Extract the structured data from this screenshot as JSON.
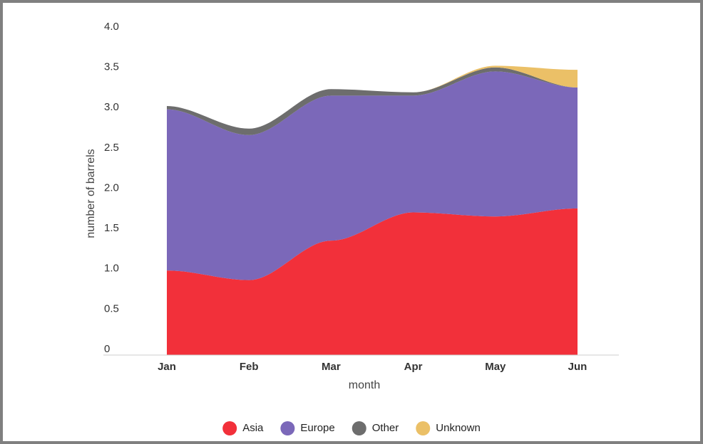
{
  "chart_data": {
    "type": "area",
    "stacked": true,
    "x_label": "month",
    "y_label": "number of barrels",
    "categories": [
      "Jan",
      "Feb",
      "Mar",
      "Apr",
      "May",
      "Jun"
    ],
    "series": [
      {
        "name": "Asia",
        "color": "#f2303a",
        "values": [
          1.05,
          0.93,
          1.42,
          1.77,
          1.72,
          1.82
        ]
      },
      {
        "name": "Europe",
        "color": "#7b68b9",
        "values": [
          2.0,
          1.8,
          1.8,
          1.45,
          1.8,
          1.5
        ]
      },
      {
        "name": "Other",
        "color": "#6d6d6d",
        "values": [
          0.04,
          0.08,
          0.08,
          0.04,
          0.05,
          0
        ]
      },
      {
        "name": "Unknown",
        "color": "#ebc067",
        "values": [
          0,
          0,
          0,
          0,
          0.02,
          0.22
        ]
      }
    ],
    "ylim": [
      0,
      4
    ],
    "yticks": [
      0,
      {
        "value": 0.5,
        "label": "0.5"
      },
      {
        "value": 1,
        "label": "1.0"
      },
      {
        "value": 1.5,
        "label": "1.5"
      },
      {
        "value": 2,
        "label": "2.0"
      },
      {
        "value": 2.5,
        "label": "2.5"
      },
      {
        "value": 3,
        "label": "3.0"
      },
      {
        "value": 3.5,
        "label": "3.5"
      },
      {
        "value": 4,
        "label": "4.0"
      }
    ],
    "grid": false,
    "legend": "bottom"
  }
}
